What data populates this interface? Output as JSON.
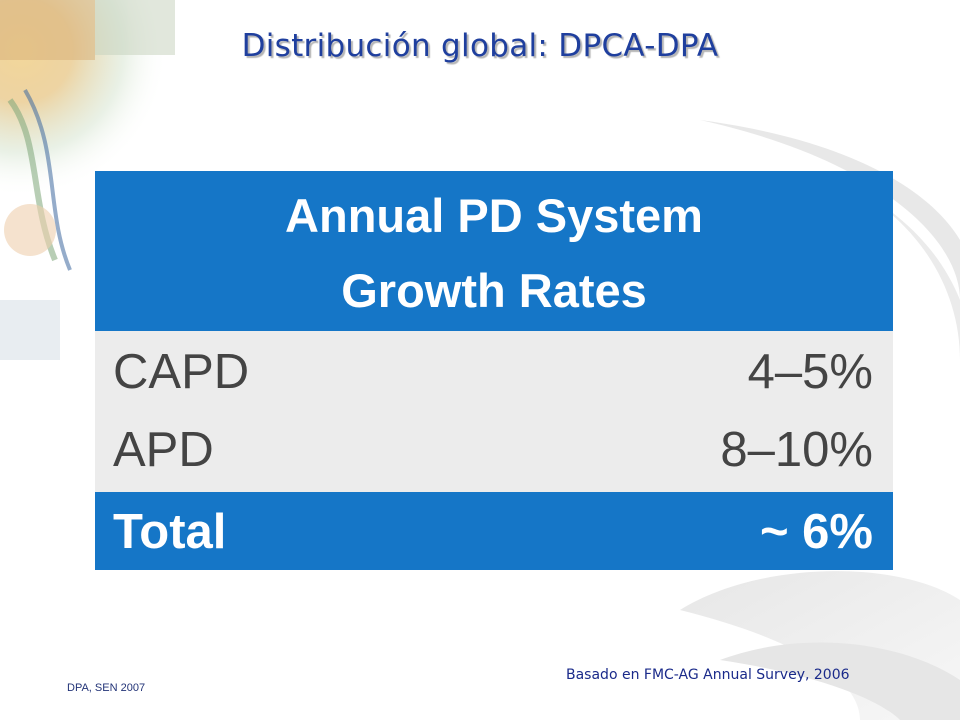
{
  "slide": {
    "title": "Distribución global: DPCA-DPA",
    "source": "Basado en FMC-AG Annual Survey, 2006",
    "footer": "DPA, SEN 2007"
  },
  "table": {
    "header_line1": "Annual PD System",
    "header_line2": "Growth Rates",
    "rows": [
      {
        "name": "CAPD",
        "value": "4–5%"
      },
      {
        "name": "APD",
        "value": "8–10%"
      }
    ],
    "total": {
      "name": "Total",
      "value": "~ 6%"
    }
  },
  "colors": {
    "title": "#1f3f9e",
    "table_blue": "#1576c7",
    "table_gray": "#ececec",
    "source_text": "#1a2a8a"
  }
}
